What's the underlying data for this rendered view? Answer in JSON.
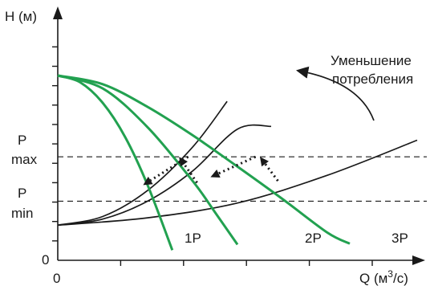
{
  "chart_data": {
    "type": "line",
    "title": "",
    "ylabel": "H (м)",
    "xlabel": {
      "text": "Q (м",
      "sup": "3",
      "tail": "/с)"
    },
    "origin_x_label": "0",
    "origin_y_label": "0",
    "levels": [
      {
        "name": "Pmax",
        "label": [
          "P",
          "max"
        ],
        "h": 5.6
      },
      {
        "name": "Pmin",
        "label": [
          "P",
          "min"
        ],
        "h": 3.2
      }
    ],
    "pump_curves": [
      {
        "name": "1P",
        "label": "1P",
        "points": [
          [
            0,
            10
          ],
          [
            0.5,
            9.63
          ],
          [
            1,
            8.52
          ],
          [
            1.5,
            6.67
          ],
          [
            2,
            4.07
          ],
          [
            2.55,
            0.55
          ]
        ]
      },
      {
        "name": "2P",
        "label": "2P",
        "points": [
          [
            0,
            10
          ],
          [
            1,
            9.3
          ],
          [
            2,
            7.2
          ],
          [
            3,
            4.3
          ],
          [
            3.5,
            2.6
          ],
          [
            4,
            0.85
          ]
        ]
      },
      {
        "name": "3P",
        "label": "3P",
        "points": [
          [
            0,
            10
          ],
          [
            1,
            9.53
          ],
          [
            2,
            8.3
          ],
          [
            3,
            6.77
          ],
          [
            4,
            5.07
          ],
          [
            5,
            3.32
          ],
          [
            6,
            1.5
          ],
          [
            6.5,
            0.9
          ]
        ]
      }
    ],
    "system_curves": [
      {
        "name": "steep",
        "points": [
          [
            0,
            1.9
          ],
          [
            1,
            2.37
          ],
          [
            2,
            3.78
          ],
          [
            3,
            6.12
          ],
          [
            3.77,
            8.6
          ]
        ]
      },
      {
        "name": "medium",
        "points": [
          [
            0,
            1.9
          ],
          [
            1,
            2.23
          ],
          [
            2,
            3.2
          ],
          [
            3,
            4.83
          ],
          [
            4,
            7.1
          ],
          [
            4.75,
            7.25
          ]
        ]
      },
      {
        "name": "flat",
        "points": [
          [
            0,
            1.9
          ],
          [
            2,
            2.3
          ],
          [
            4,
            3.1
          ],
          [
            6,
            4.6
          ],
          [
            8,
            6.5
          ]
        ]
      }
    ],
    "transitions": [
      {
        "from": [
          2.9,
          5.6
        ],
        "to": [
          1.9,
          4.07
        ]
      },
      {
        "from": [
          3.1,
          4.2
        ],
        "to": [
          2.7,
          5.6
        ]
      },
      {
        "from": [
          4.4,
          5.6
        ],
        "to": [
          3.4,
          4.5
        ]
      },
      {
        "from": [
          4.9,
          4.3
        ],
        "to": [
          4.5,
          5.6
        ]
      }
    ],
    "annotation": {
      "lines": [
        "Уменьшение",
        "потребления"
      ]
    },
    "axes": {
      "x_max": 8,
      "y_max": 14,
      "grid": false
    }
  }
}
